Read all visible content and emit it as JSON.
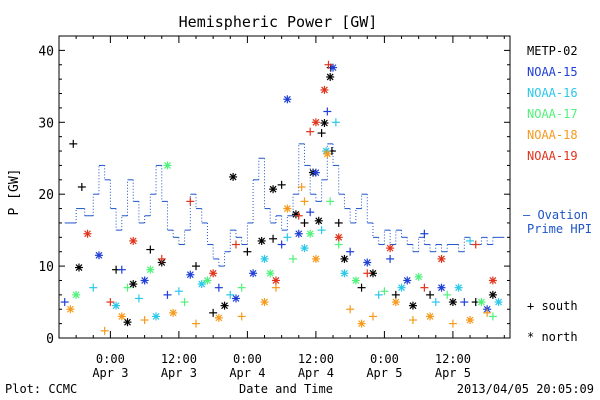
{
  "chart_data": {
    "type": "scatter",
    "title": "Hemispheric Power [GW]",
    "ylabel": "P [GW]",
    "xlabel": "Date and Time",
    "ylim": [
      0,
      42
    ],
    "yticks": [
      0,
      10,
      20,
      30,
      40
    ],
    "xlim": [
      -9,
      70
    ],
    "xticks": [
      {
        "x": 0,
        "time": "0:00",
        "date": "Apr 3"
      },
      {
        "x": 12,
        "time": "12:00",
        "date": "Apr 3"
      },
      {
        "x": 24,
        "time": "0:00",
        "date": "Apr 4"
      },
      {
        "x": 36,
        "time": "12:00",
        "date": "Apr 4"
      },
      {
        "x": 48,
        "time": "0:00",
        "date": "Apr 5"
      },
      {
        "x": 60,
        "time": "12:00",
        "date": "Apr 5"
      }
    ],
    "series": [
      {
        "name": "METP-02",
        "color": "#000000"
      },
      {
        "name": "NOAA-15",
        "color": "#1f3fd6"
      },
      {
        "name": "NOAA-16",
        "color": "#2bc8e8"
      },
      {
        "name": "NOAA-17",
        "color": "#4ff27a"
      },
      {
        "name": "NOAA-18",
        "color": "#f59a1c"
      },
      {
        "name": "NOAA-19",
        "color": "#e0331b"
      }
    ],
    "ovation": {
      "label_line1": "— Ovation",
      "label_line2": "Prime HPI",
      "color": "#1f55c8",
      "steps": [
        [
          -8,
          16
        ],
        [
          -6,
          18
        ],
        [
          -4.5,
          17
        ],
        [
          -3,
          20
        ],
        [
          -2,
          24
        ],
        [
          -1,
          22
        ],
        [
          0,
          18
        ],
        [
          1,
          15
        ],
        [
          2,
          17
        ],
        [
          3,
          22
        ],
        [
          4,
          19
        ],
        [
          5,
          16
        ],
        [
          6,
          17
        ],
        [
          7,
          20
        ],
        [
          8,
          24
        ],
        [
          9,
          19
        ],
        [
          10,
          15
        ],
        [
          11,
          14
        ],
        [
          12,
          13
        ],
        [
          13,
          15
        ],
        [
          14,
          20
        ],
        [
          15,
          18
        ],
        [
          16,
          16
        ],
        [
          17,
          13
        ],
        [
          18,
          11
        ],
        [
          19,
          10
        ],
        [
          20,
          12
        ],
        [
          21,
          15
        ],
        [
          22,
          14
        ],
        [
          23,
          13
        ],
        [
          24,
          16
        ],
        [
          25,
          22
        ],
        [
          26,
          25
        ],
        [
          27,
          18
        ],
        [
          28,
          16
        ],
        [
          29,
          17
        ],
        [
          30,
          15
        ],
        [
          31,
          17
        ],
        [
          32,
          20
        ],
        [
          33,
          27
        ],
        [
          34,
          24
        ],
        [
          35,
          20
        ],
        [
          36,
          19
        ],
        [
          37,
          22
        ],
        [
          38,
          27
        ],
        [
          39,
          24
        ],
        [
          40,
          20
        ],
        [
          41,
          18
        ],
        [
          42,
          16
        ],
        [
          43,
          18
        ],
        [
          44,
          20
        ],
        [
          45,
          16
        ],
        [
          46,
          14
        ],
        [
          47,
          13
        ],
        [
          48,
          15
        ],
        [
          49,
          13
        ],
        [
          50,
          15
        ],
        [
          51,
          14
        ],
        [
          52,
          13
        ],
        [
          53,
          12
        ],
        [
          54,
          14
        ],
        [
          55,
          13
        ],
        [
          56,
          12
        ],
        [
          57,
          13
        ],
        [
          58,
          12
        ],
        [
          59,
          13
        ],
        [
          60,
          13
        ],
        [
          61,
          12
        ],
        [
          62,
          14
        ],
        [
          63,
          13
        ],
        [
          64,
          13
        ],
        [
          65,
          14
        ],
        [
          66,
          13
        ],
        [
          67,
          14
        ],
        [
          68,
          14
        ]
      ]
    },
    "marker_legend": [
      {
        "symbol": "+",
        "label": "south"
      },
      {
        "symbol": "*",
        "label": "north"
      }
    ],
    "points": [
      {
        "s": 0,
        "m": "+",
        "x": -6.5,
        "y": 27
      },
      {
        "s": 0,
        "m": "+",
        "x": -5,
        "y": 21
      },
      {
        "s": 0,
        "m": "*",
        "x": 21.5,
        "y": 22.4
      },
      {
        "s": 0,
        "m": "*",
        "x": 38.5,
        "y": 36.3
      },
      {
        "s": 0,
        "m": "+",
        "x": 38.6,
        "y": 37.6
      },
      {
        "s": 0,
        "m": "*",
        "x": 28.5,
        "y": 20.7
      },
      {
        "s": 0,
        "m": "+",
        "x": 30,
        "y": 21.3
      },
      {
        "s": 0,
        "m": "*",
        "x": 35.5,
        "y": 23
      },
      {
        "s": 0,
        "m": "+",
        "x": 37,
        "y": 28.5
      },
      {
        "s": 0,
        "m": "*",
        "x": 37.5,
        "y": 29.9
      },
      {
        "s": 0,
        "m": "+",
        "x": 38.8,
        "y": 26
      },
      {
        "s": 0,
        "m": "*",
        "x": -5.5,
        "y": 9.8
      },
      {
        "s": 0,
        "m": "+",
        "x": 1,
        "y": 9.5
      },
      {
        "s": 0,
        "m": "*",
        "x": 4,
        "y": 7.5
      },
      {
        "s": 0,
        "m": "+",
        "x": 7,
        "y": 12.3
      },
      {
        "s": 0,
        "m": "*",
        "x": 9,
        "y": 10.5
      },
      {
        "s": 0,
        "m": "+",
        "x": 15,
        "y": 10
      },
      {
        "s": 0,
        "m": "*",
        "x": 20,
        "y": 4.5
      },
      {
        "s": 0,
        "m": "+",
        "x": 24,
        "y": 12
      },
      {
        "s": 0,
        "m": "*",
        "x": 26.5,
        "y": 13.5
      },
      {
        "s": 0,
        "m": "+",
        "x": 28.5,
        "y": 13.8
      },
      {
        "s": 0,
        "m": "*",
        "x": 32.5,
        "y": 17.2
      },
      {
        "s": 0,
        "m": "+",
        "x": 34,
        "y": 16
      },
      {
        "s": 0,
        "m": "*",
        "x": 36.5,
        "y": 16.3
      },
      {
        "s": 0,
        "m": "+",
        "x": 40,
        "y": 16
      },
      {
        "s": 0,
        "m": "*",
        "x": 41,
        "y": 11
      },
      {
        "s": 0,
        "m": "+",
        "x": 44,
        "y": 7
      },
      {
        "s": 0,
        "m": "*",
        "x": 46,
        "y": 9
      },
      {
        "s": 0,
        "m": "+",
        "x": 50,
        "y": 6
      },
      {
        "s": 0,
        "m": "*",
        "x": 53,
        "y": 4.5
      },
      {
        "s": 0,
        "m": "+",
        "x": 56,
        "y": 6
      },
      {
        "s": 0,
        "m": "*",
        "x": 60,
        "y": 5
      },
      {
        "s": 0,
        "m": "+",
        "x": 64,
        "y": 5
      },
      {
        "s": 0,
        "m": "*",
        "x": 67,
        "y": 6
      },
      {
        "s": 0,
        "m": "*",
        "x": 3,
        "y": 2.2
      },
      {
        "s": 0,
        "m": "+",
        "x": 18,
        "y": 3.5
      },
      {
        "s": 1,
        "m": "*",
        "x": 31,
        "y": 33.2
      },
      {
        "s": 1,
        "m": "*",
        "x": 39,
        "y": 37.6
      },
      {
        "s": 1,
        "m": "+",
        "x": 38,
        "y": 31.5
      },
      {
        "s": 1,
        "m": "*",
        "x": -2,
        "y": 11.5
      },
      {
        "s": 1,
        "m": "+",
        "x": 2,
        "y": 9.5
      },
      {
        "s": 1,
        "m": "*",
        "x": 6,
        "y": 8
      },
      {
        "s": 1,
        "m": "+",
        "x": 10,
        "y": 6
      },
      {
        "s": 1,
        "m": "*",
        "x": 14,
        "y": 8.8
      },
      {
        "s": 1,
        "m": "+",
        "x": 19,
        "y": 7
      },
      {
        "s": 1,
        "m": "*",
        "x": 25,
        "y": 9
      },
      {
        "s": 1,
        "m": "+",
        "x": 30,
        "y": 13
      },
      {
        "s": 1,
        "m": "*",
        "x": 33,
        "y": 14.5
      },
      {
        "s": 1,
        "m": "+",
        "x": 35,
        "y": 17.5
      },
      {
        "s": 1,
        "m": "*",
        "x": 36,
        "y": 23
      },
      {
        "s": 1,
        "m": "+",
        "x": 42,
        "y": 12
      },
      {
        "s": 1,
        "m": "*",
        "x": 45,
        "y": 10.5
      },
      {
        "s": 1,
        "m": "+",
        "x": 49,
        "y": 11
      },
      {
        "s": 1,
        "m": "*",
        "x": 52,
        "y": 8
      },
      {
        "s": 1,
        "m": "+",
        "x": 55,
        "y": 14.5
      },
      {
        "s": 1,
        "m": "*",
        "x": 58,
        "y": 7
      },
      {
        "s": 1,
        "m": "+",
        "x": 62,
        "y": 5
      },
      {
        "s": 1,
        "m": "*",
        "x": 66,
        "y": 4
      },
      {
        "s": 1,
        "m": "+",
        "x": -8,
        "y": 5
      },
      {
        "s": 1,
        "m": "*",
        "x": 22,
        "y": 5.5
      },
      {
        "s": 2,
        "m": "+",
        "x": 39.5,
        "y": 30
      },
      {
        "s": 2,
        "m": "*",
        "x": 37.8,
        "y": 26
      },
      {
        "s": 2,
        "m": "+",
        "x": -3,
        "y": 7
      },
      {
        "s": 2,
        "m": "*",
        "x": 1,
        "y": 4.5
      },
      {
        "s": 2,
        "m": "+",
        "x": 5,
        "y": 5.5
      },
      {
        "s": 2,
        "m": "*",
        "x": 8,
        "y": 3
      },
      {
        "s": 2,
        "m": "+",
        "x": 12,
        "y": 6.5
      },
      {
        "s": 2,
        "m": "*",
        "x": 16,
        "y": 7.5
      },
      {
        "s": 2,
        "m": "+",
        "x": 21,
        "y": 6
      },
      {
        "s": 2,
        "m": "*",
        "x": 27,
        "y": 11
      },
      {
        "s": 2,
        "m": "+",
        "x": 31,
        "y": 14
      },
      {
        "s": 2,
        "m": "*",
        "x": 34,
        "y": 12.5
      },
      {
        "s": 2,
        "m": "+",
        "x": 37,
        "y": 15
      },
      {
        "s": 2,
        "m": "*",
        "x": 41,
        "y": 9
      },
      {
        "s": 2,
        "m": "+",
        "x": 47,
        "y": 6
      },
      {
        "s": 2,
        "m": "*",
        "x": 51,
        "y": 7
      },
      {
        "s": 2,
        "m": "+",
        "x": 57,
        "y": 5
      },
      {
        "s": 2,
        "m": "*",
        "x": 61,
        "y": 7
      },
      {
        "s": 2,
        "m": "+",
        "x": 63,
        "y": 13.5
      },
      {
        "s": 2,
        "m": "*",
        "x": 68,
        "y": 5
      },
      {
        "s": 3,
        "m": "*",
        "x": 10,
        "y": 24
      },
      {
        "s": 3,
        "m": "+",
        "x": 38.5,
        "y": 19
      },
      {
        "s": 3,
        "m": "*",
        "x": -6,
        "y": 6
      },
      {
        "s": 3,
        "m": "+",
        "x": 3,
        "y": 7
      },
      {
        "s": 3,
        "m": "*",
        "x": 7,
        "y": 9.5
      },
      {
        "s": 3,
        "m": "+",
        "x": 13,
        "y": 5
      },
      {
        "s": 3,
        "m": "*",
        "x": 17,
        "y": 8
      },
      {
        "s": 3,
        "m": "+",
        "x": 23,
        "y": 7
      },
      {
        "s": 3,
        "m": "*",
        "x": 28,
        "y": 9
      },
      {
        "s": 3,
        "m": "+",
        "x": 32,
        "y": 11
      },
      {
        "s": 3,
        "m": "*",
        "x": 35,
        "y": 14.5
      },
      {
        "s": 3,
        "m": "+",
        "x": 40,
        "y": 13
      },
      {
        "s": 3,
        "m": "*",
        "x": 43,
        "y": 8
      },
      {
        "s": 3,
        "m": "+",
        "x": 48,
        "y": 6.5
      },
      {
        "s": 3,
        "m": "*",
        "x": 54,
        "y": 8.5
      },
      {
        "s": 3,
        "m": "+",
        "x": 59,
        "y": 6
      },
      {
        "s": 3,
        "m": "*",
        "x": 65,
        "y": 5
      },
      {
        "s": 3,
        "m": "+",
        "x": 67,
        "y": 3
      },
      {
        "s": 4,
        "m": "*",
        "x": 38,
        "y": 25.6
      },
      {
        "s": 4,
        "m": "+",
        "x": 33.5,
        "y": 21
      },
      {
        "s": 4,
        "m": "*",
        "x": -7,
        "y": 4
      },
      {
        "s": 4,
        "m": "+",
        "x": -1,
        "y": 1
      },
      {
        "s": 4,
        "m": "*",
        "x": 2,
        "y": 3
      },
      {
        "s": 4,
        "m": "+",
        "x": 6,
        "y": 2.5
      },
      {
        "s": 4,
        "m": "*",
        "x": 11,
        "y": 3.5
      },
      {
        "s": 4,
        "m": "+",
        "x": 15,
        "y": 2
      },
      {
        "s": 4,
        "m": "*",
        "x": 19,
        "y": 2.8
      },
      {
        "s": 4,
        "m": "+",
        "x": 23,
        "y": 3
      },
      {
        "s": 4,
        "m": "*",
        "x": 27,
        "y": 5
      },
      {
        "s": 4,
        "m": "+",
        "x": 29,
        "y": 7
      },
      {
        "s": 4,
        "m": "*",
        "x": 31,
        "y": 18
      },
      {
        "s": 4,
        "m": "+",
        "x": 34,
        "y": 19
      },
      {
        "s": 4,
        "m": "*",
        "x": 36,
        "y": 11
      },
      {
        "s": 4,
        "m": "+",
        "x": 42,
        "y": 4
      },
      {
        "s": 4,
        "m": "*",
        "x": 44,
        "y": 2
      },
      {
        "s": 4,
        "m": "+",
        "x": 46,
        "y": 3
      },
      {
        "s": 4,
        "m": "*",
        "x": 50,
        "y": 5
      },
      {
        "s": 4,
        "m": "+",
        "x": 53,
        "y": 2.5
      },
      {
        "s": 4,
        "m": "*",
        "x": 56,
        "y": 3
      },
      {
        "s": 4,
        "m": "+",
        "x": 60,
        "y": 2
      },
      {
        "s": 4,
        "m": "*",
        "x": 63,
        "y": 2.5
      },
      {
        "s": 4,
        "m": "+",
        "x": 66,
        "y": 3.5
      },
      {
        "s": 5,
        "m": "*",
        "x": 37.5,
        "y": 34.5
      },
      {
        "s": 5,
        "m": "+",
        "x": 38.2,
        "y": 38
      },
      {
        "s": 5,
        "m": "*",
        "x": 36,
        "y": 30
      },
      {
        "s": 5,
        "m": "+",
        "x": 35,
        "y": 28.7
      },
      {
        "s": 5,
        "m": "*",
        "x": -4,
        "y": 14.5
      },
      {
        "s": 5,
        "m": "+",
        "x": 14,
        "y": 19
      },
      {
        "s": 5,
        "m": "*",
        "x": 4,
        "y": 13.5
      },
      {
        "s": 5,
        "m": "+",
        "x": 9,
        "y": 11
      },
      {
        "s": 5,
        "m": "*",
        "x": 18,
        "y": 9
      },
      {
        "s": 5,
        "m": "+",
        "x": 22,
        "y": 13
      },
      {
        "s": 5,
        "m": "*",
        "x": 29,
        "y": 8
      },
      {
        "s": 5,
        "m": "+",
        "x": 33,
        "y": 17
      },
      {
        "s": 5,
        "m": "*",
        "x": 40,
        "y": 14
      },
      {
        "s": 5,
        "m": "+",
        "x": 45,
        "y": 9
      },
      {
        "s": 5,
        "m": "*",
        "x": 49,
        "y": 12.5
      },
      {
        "s": 5,
        "m": "+",
        "x": 55,
        "y": 7
      },
      {
        "s": 5,
        "m": "*",
        "x": 58,
        "y": 11
      },
      {
        "s": 5,
        "m": "+",
        "x": 64,
        "y": 13
      },
      {
        "s": 5,
        "m": "*",
        "x": 67,
        "y": 8
      },
      {
        "s": 5,
        "m": "+",
        "x": 0,
        "y": 5
      }
    ]
  },
  "footer": {
    "left": "Plot: CCMC",
    "right": "2013/04/05 20:05:09"
  }
}
